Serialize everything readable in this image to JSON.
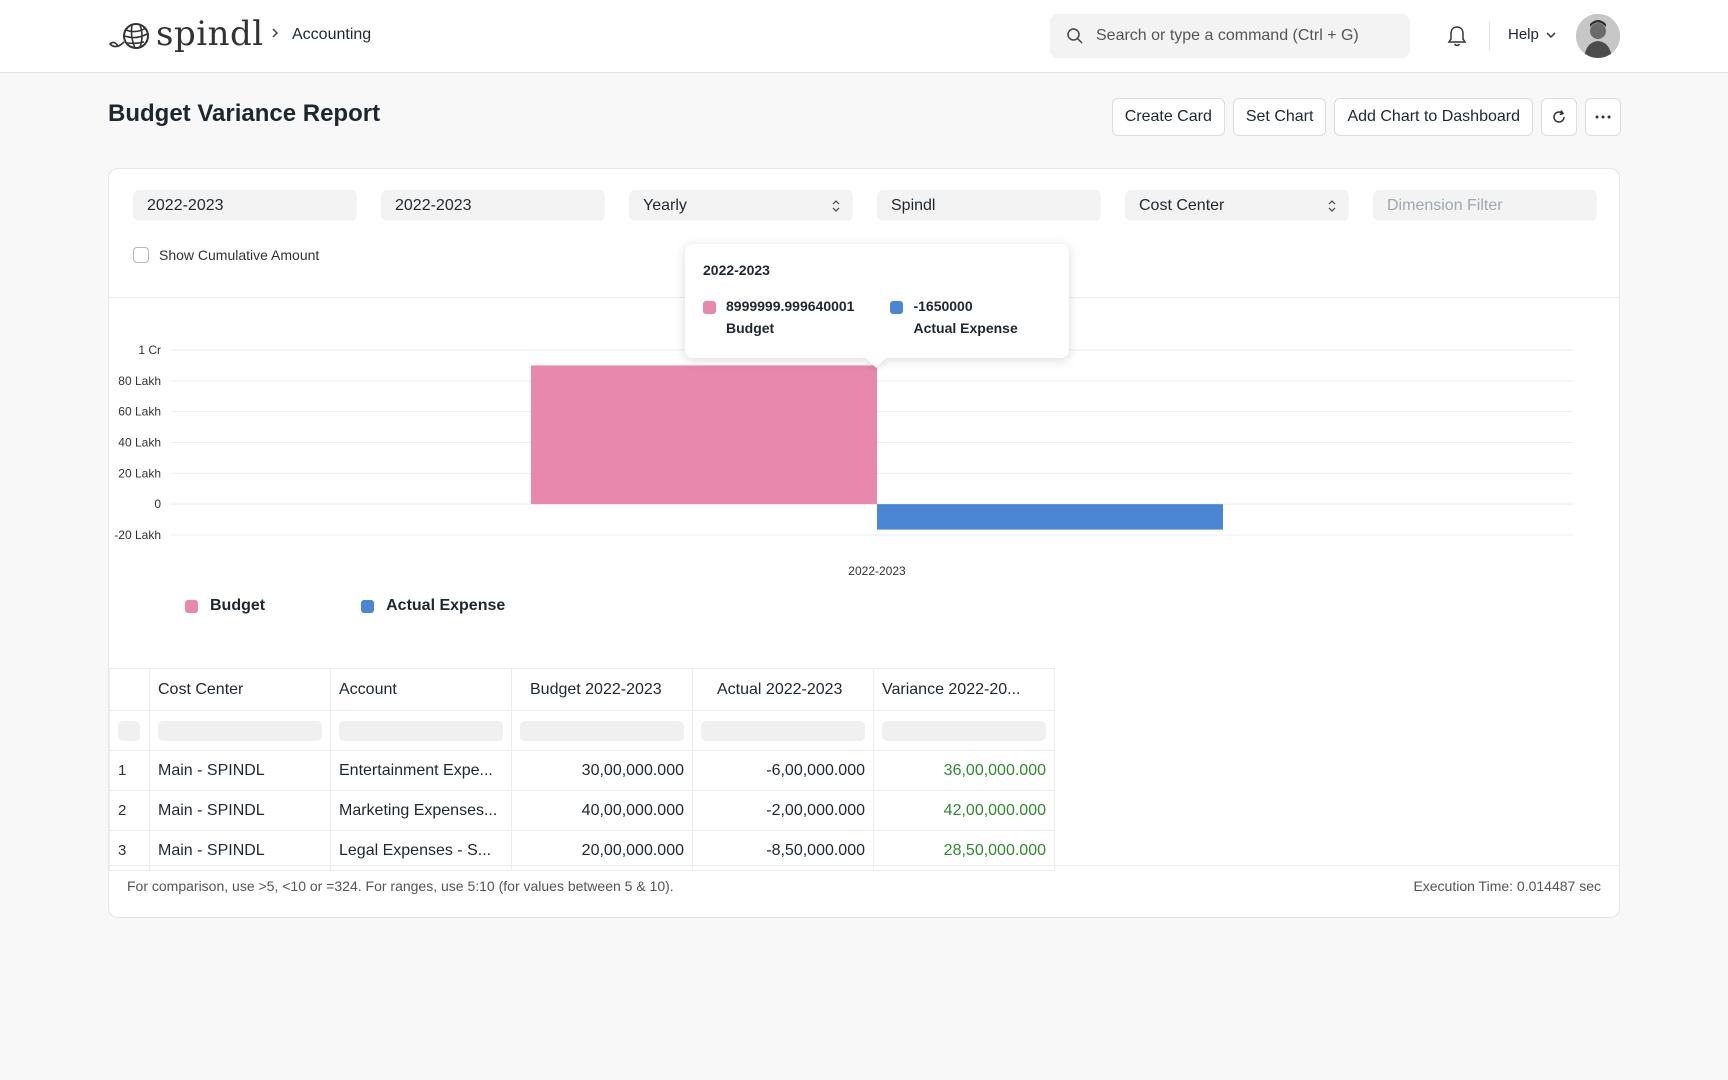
{
  "navbar": {
    "brand": "spindl",
    "breadcrumb": "Accounting",
    "search_placeholder": "Search or type a command (Ctrl + G)",
    "help_label": "Help"
  },
  "page": {
    "title": "Budget Variance Report"
  },
  "actions": {
    "create_card": "Create Card",
    "set_chart": "Set Chart",
    "add_chart": "Add Chart to Dashboard"
  },
  "filters": {
    "from_fiscal_year": "2022-2023",
    "to_fiscal_year": "2022-2023",
    "period": "Yearly",
    "company": "Spindl",
    "budget_against": "Cost Center",
    "dimension_placeholder": "Dimension Filter",
    "show_cumulative_label": "Show Cumulative Amount"
  },
  "colors": {
    "budget": "#e888ad",
    "actual": "#4a86d3"
  },
  "chart_data": {
    "type": "bar",
    "categories": [
      "2022-2023"
    ],
    "series": [
      {
        "name": "Budget",
        "values": [
          8999999.999640001
        ],
        "color": "#e888ad"
      },
      {
        "name": "Actual Expense",
        "values": [
          -1650000
        ],
        "color": "#4a86d3"
      }
    ],
    "ylim": [
      -2000000,
      10000000
    ],
    "yticks": [
      {
        "value": 10000000,
        "label": "1 Cr"
      },
      {
        "value": 8000000,
        "label": "80 Lakh"
      },
      {
        "value": 6000000,
        "label": "60 Lakh"
      },
      {
        "value": 4000000,
        "label": "40 Lakh"
      },
      {
        "value": 2000000,
        "label": "20 Lakh"
      },
      {
        "value": 0,
        "label": "0"
      },
      {
        "value": -2000000,
        "label": "-20 Lakh"
      }
    ],
    "grid": true,
    "legend": "bottom-left"
  },
  "tooltip": {
    "title": "2022-2023",
    "items": [
      {
        "value": "8999999.999640001",
        "name": "Budget"
      },
      {
        "value": "-1650000",
        "name": "Actual Expense"
      }
    ]
  },
  "table": {
    "columns": [
      "Cost Center",
      "Account",
      "Budget 2022-2023",
      "Actual 2022-2023",
      "Variance 2022-20..."
    ],
    "rows": [
      {
        "index": "1",
        "cost_center": "Main - SPINDL",
        "account": "Entertainment Expe...",
        "budget": "30,00,000.000",
        "actual": "-6,00,000.000",
        "variance": "36,00,000.000"
      },
      {
        "index": "2",
        "cost_center": "Main - SPINDL",
        "account": "Marketing Expenses...",
        "budget": "40,00,000.000",
        "actual": "-2,00,000.000",
        "variance": "42,00,000.000"
      },
      {
        "index": "3",
        "cost_center": "Main - SPINDL",
        "account": "Legal Expenses - S...",
        "budget": "20,00,000.000",
        "actual": "-8,50,000.000",
        "variance": "28,50,000.000"
      }
    ]
  },
  "footer": {
    "note": "For comparison, use >5, <10 or =324. For ranges, use 5:10 (for values between 5 & 10).",
    "execution_time": "Execution Time: 0.014487 sec"
  }
}
